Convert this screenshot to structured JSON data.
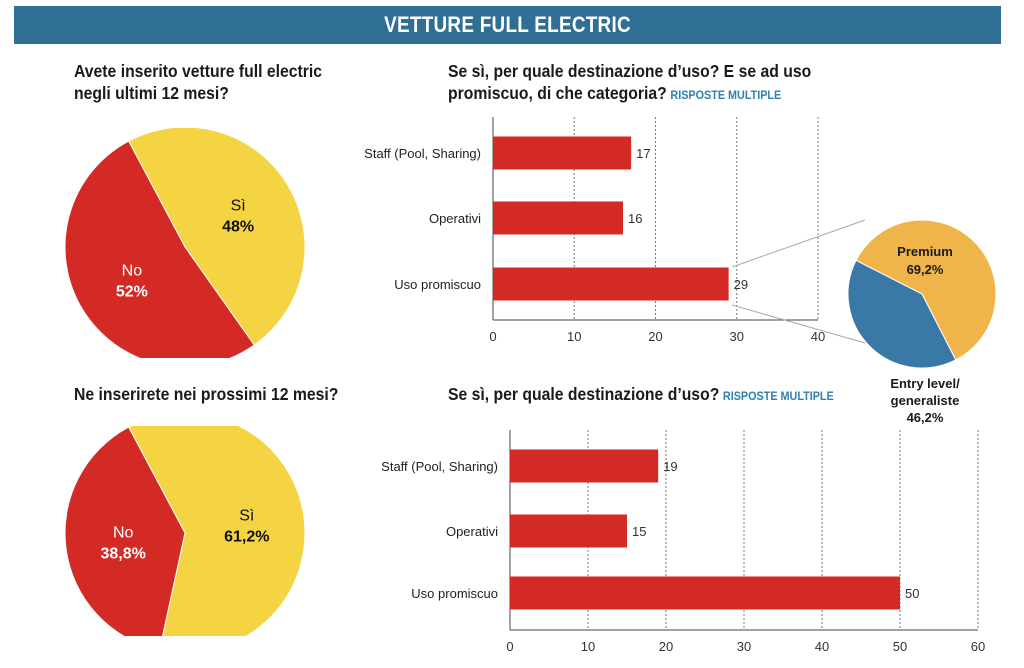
{
  "header": {
    "title": "VETTURE FULL ELECTRIC"
  },
  "questions": {
    "q1": [
      "Avete inserito vetture full electric",
      "negli ultimi 12 mesi?"
    ],
    "q2": [
      "Se sì, per quale destinazione d’uso? E se ad uso",
      "promiscuo, di che categoria?"
    ],
    "q2_tag": "RISPOSTE MULTIPLE",
    "q3": "Ne inserirete nei prossimi 12 mesi?",
    "q4": "Se sì, per quale destinazione d’uso?",
    "q4_tag": "RISPOSTE MULTIPLE"
  },
  "colors": {
    "banner": "#2f6f93",
    "yellow": "#f5d443",
    "red": "#d42a26",
    "orange": "#f0b54a",
    "blue": "#3a78a8",
    "tag": "#2f7fb0"
  },
  "chart_data": [
    {
      "type": "pie",
      "slices": [
        {
          "label": "Sì",
          "value_label": "48%",
          "value": 48
        },
        {
          "label": "No",
          "value_label": "52%",
          "value": 52
        }
      ]
    },
    {
      "type": "bar",
      "orientation": "horizontal",
      "categories": [
        "Staff (Pool, Sharing)",
        "Operativi",
        "Uso promiscuo"
      ],
      "values": [
        17,
        16,
        29
      ],
      "xlim": [
        0,
        40
      ],
      "ticks": [
        0,
        10,
        20,
        30,
        40
      ],
      "grid": true
    },
    {
      "type": "pie",
      "slices": [
        {
          "label": "Premium",
          "value_label": "69,2%",
          "value": 69.2
        },
        {
          "label": "Entry level/ generaliste",
          "value_label": "46,2%",
          "value": 46.2
        }
      ]
    },
    {
      "type": "pie",
      "slices": [
        {
          "label": "Sì",
          "value_label": "61,2%",
          "value": 61.2
        },
        {
          "label": "No",
          "value_label": "38,8%",
          "value": 38.8
        }
      ]
    },
    {
      "type": "bar",
      "orientation": "horizontal",
      "categories": [
        "Staff (Pool, Sharing)",
        "Operativi",
        "Uso promiscuo"
      ],
      "values": [
        19,
        15,
        50
      ],
      "xlim": [
        0,
        60
      ],
      "ticks": [
        0,
        10,
        20,
        30,
        40,
        50,
        60
      ],
      "grid": true
    }
  ]
}
